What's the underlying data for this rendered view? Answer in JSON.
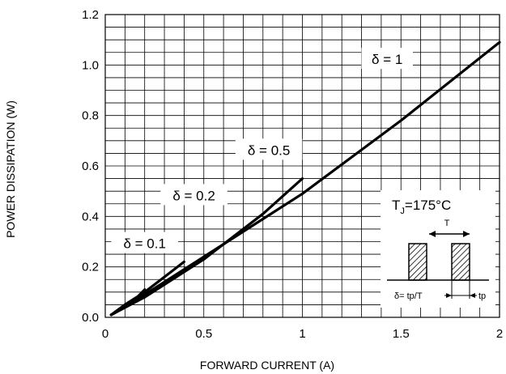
{
  "chart_data": {
    "type": "line",
    "xlabel": "FORWARD CURRENT (A)",
    "ylabel": "POWER DISSIPATION (W)",
    "xlim": [
      0,
      2
    ],
    "ylim": [
      0,
      1.2
    ],
    "xticks": [
      0,
      0.5,
      1,
      1.5,
      2
    ],
    "xtick_labels": [
      "0",
      "0.5",
      "1",
      "1.5",
      "2"
    ],
    "yticks": [
      0.0,
      0.2,
      0.4,
      0.6,
      0.8,
      1.0,
      1.2
    ],
    "ytick_labels": [
      "0.0",
      "0.2",
      "0.4",
      "0.6",
      "0.8",
      "1.0",
      "1.2"
    ],
    "grid": true,
    "series": [
      {
        "name": "δ = 1",
        "x": [
          0.03,
          0.1,
          0.3,
          0.5,
          1.0,
          1.5,
          2.0
        ],
        "y": [
          0.01,
          0.04,
          0.14,
          0.24,
          0.49,
          0.78,
          1.09
        ]
      },
      {
        "name": "δ = 0.5",
        "x": [
          0.03,
          0.2,
          0.5,
          0.8,
          1.0
        ],
        "y": [
          0.01,
          0.08,
          0.23,
          0.41,
          0.55
        ]
      },
      {
        "name": "δ = 0.2",
        "x": [
          0.03,
          0.1,
          0.2,
          0.3,
          0.4
        ],
        "y": [
          0.01,
          0.05,
          0.1,
          0.16,
          0.22
        ]
      },
      {
        "name": "δ = 0.1",
        "x": [
          0.03,
          0.1,
          0.15,
          0.2
        ],
        "y": [
          0.01,
          0.04,
          0.07,
          0.11
        ]
      }
    ],
    "annotations": [
      {
        "text": "δ = 1",
        "x": 1.43,
        "y": 1.02
      },
      {
        "text": "δ = 0.5",
        "x": 0.83,
        "y": 0.66
      },
      {
        "text": "δ = 0.2",
        "x": 0.45,
        "y": 0.48
      },
      {
        "text": "δ = 0.1",
        "x": 0.2,
        "y": 0.29
      }
    ],
    "inset": {
      "title_main": "T",
      "title_sub": "J",
      "title_rest": "=175°C",
      "period_label": "T",
      "duty_label": "δ= tp/T",
      "pulse_label": "tp"
    }
  }
}
